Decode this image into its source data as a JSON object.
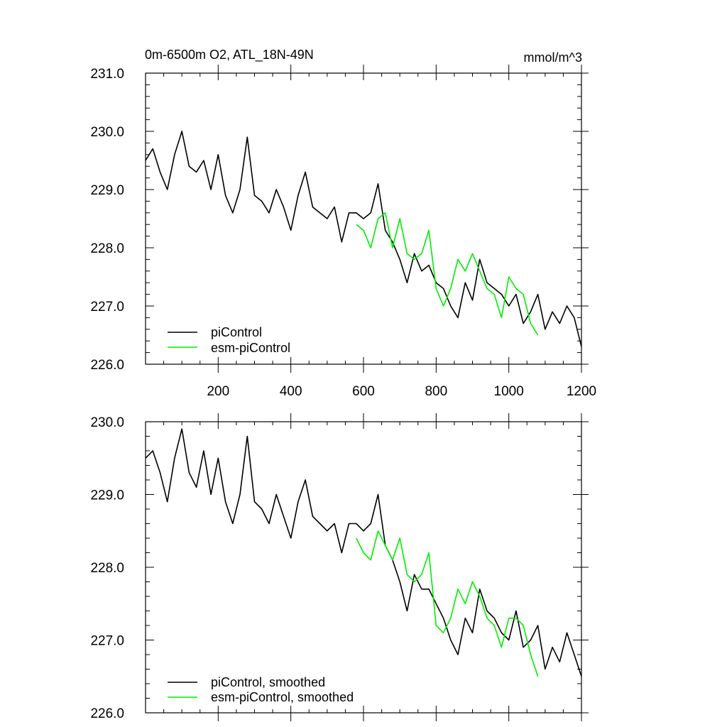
{
  "colors": {
    "piControl": "#000000",
    "esm_piControl": "#00ee00"
  },
  "chart_data": [
    {
      "type": "line",
      "title_left": "0m-6500m O2, ATL_18N-49N",
      "title_right": "mmol/m^3",
      "xlabel": "",
      "ylabel": "",
      "xlim": [
        0,
        1200
      ],
      "ylim": [
        226.0,
        231.0
      ],
      "x_ticks": [
        200,
        400,
        600,
        800,
        1000,
        1200
      ],
      "x_tick_labels": [
        "200",
        "400",
        "600",
        "800",
        "1000",
        "1200"
      ],
      "y_ticks": [
        226,
        227,
        228,
        229,
        230,
        231
      ],
      "y_tick_labels": [
        "226.0",
        "227.0",
        "228.0",
        "229.0",
        "230.0",
        "231.0"
      ],
      "legend_position": "bottom-left",
      "series": [
        {
          "name": "piControl",
          "color": "#000000",
          "x": [
            0,
            20,
            40,
            60,
            80,
            100,
            120,
            140,
            160,
            180,
            200,
            220,
            240,
            260,
            280,
            300,
            320,
            340,
            360,
            380,
            400,
            420,
            440,
            460,
            480,
            500,
            520,
            540,
            560,
            580,
            600,
            620,
            640,
            660,
            680,
            700,
            720,
            740,
            760,
            780,
            800,
            820,
            840,
            860,
            880,
            900,
            920,
            940,
            960,
            980,
            1000,
            1020,
            1040,
            1060,
            1080,
            1100,
            1120,
            1140,
            1160,
            1180,
            1200
          ],
          "y": [
            229.5,
            229.7,
            229.3,
            229.0,
            229.6,
            230.0,
            229.4,
            229.3,
            229.5,
            229.0,
            229.6,
            228.9,
            228.6,
            229.0,
            229.9,
            228.9,
            228.8,
            228.6,
            229.0,
            228.7,
            228.3,
            228.9,
            229.3,
            228.7,
            228.6,
            228.5,
            228.7,
            228.1,
            228.6,
            228.6,
            228.5,
            228.6,
            229.1,
            228.3,
            228.1,
            227.8,
            227.4,
            227.9,
            227.6,
            227.7,
            227.4,
            227.3,
            227.0,
            226.8,
            227.4,
            227.1,
            227.8,
            227.4,
            227.3,
            227.2,
            227.0,
            227.2,
            226.7,
            226.9,
            227.2,
            226.6,
            226.9,
            226.7,
            227.0,
            226.8,
            226.3
          ]
        },
        {
          "name": "esm-piControl",
          "color": "#00ee00",
          "x": [
            580,
            600,
            620,
            640,
            660,
            680,
            700,
            720,
            740,
            760,
            780,
            800,
            820,
            840,
            860,
            880,
            900,
            920,
            940,
            960,
            980,
            1000,
            1020,
            1040,
            1060,
            1080
          ],
          "y": [
            228.4,
            228.3,
            228.0,
            228.5,
            228.6,
            228.0,
            228.5,
            227.9,
            227.8,
            227.9,
            228.3,
            227.3,
            227.0,
            227.3,
            227.8,
            227.6,
            227.9,
            227.6,
            227.3,
            227.2,
            226.8,
            227.5,
            227.3,
            227.2,
            226.7,
            226.5
          ]
        }
      ]
    },
    {
      "type": "line",
      "xlabel": "",
      "ylabel": "",
      "xlim": [
        0,
        1200
      ],
      "ylim": [
        226.0,
        230.0
      ],
      "y_ticks": [
        226,
        227,
        228,
        229,
        230
      ],
      "y_tick_labels": [
        "226.0",
        "227.0",
        "228.0",
        "229.0",
        "230.0"
      ],
      "legend_position": "bottom-left",
      "series": [
        {
          "name": "piControl, smoothed",
          "color": "#000000",
          "x": [
            0,
            20,
            40,
            60,
            80,
            100,
            120,
            140,
            160,
            180,
            200,
            220,
            240,
            260,
            280,
            300,
            320,
            340,
            360,
            380,
            400,
            420,
            440,
            460,
            480,
            500,
            520,
            540,
            560,
            580,
            600,
            620,
            640,
            660,
            680,
            700,
            720,
            740,
            760,
            780,
            800,
            820,
            840,
            860,
            880,
            900,
            920,
            940,
            960,
            980,
            1000,
            1020,
            1040,
            1060,
            1080,
            1100,
            1120,
            1140,
            1160,
            1180,
            1200
          ],
          "y": [
            229.5,
            229.6,
            229.3,
            228.9,
            229.5,
            229.9,
            229.3,
            229.1,
            229.6,
            229.0,
            229.5,
            228.9,
            228.6,
            229.0,
            229.8,
            228.9,
            228.8,
            228.6,
            229.0,
            228.7,
            228.4,
            228.9,
            229.2,
            228.7,
            228.6,
            228.5,
            228.6,
            228.2,
            228.6,
            228.6,
            228.5,
            228.6,
            229.0,
            228.3,
            228.1,
            227.8,
            227.4,
            227.9,
            227.7,
            227.7,
            227.5,
            227.3,
            227.0,
            226.8,
            227.3,
            227.1,
            227.7,
            227.4,
            227.3,
            227.1,
            227.0,
            227.4,
            226.9,
            227.0,
            227.2,
            226.6,
            226.9,
            226.7,
            227.1,
            226.8,
            226.5
          ]
        },
        {
          "name": "esm-piControl, smoothed",
          "color": "#00ee00",
          "x": [
            580,
            600,
            620,
            640,
            660,
            680,
            700,
            720,
            740,
            760,
            780,
            800,
            820,
            840,
            860,
            880,
            900,
            920,
            940,
            960,
            980,
            1000,
            1020,
            1040,
            1060,
            1080
          ],
          "y": [
            228.4,
            228.2,
            228.1,
            228.5,
            228.3,
            228.1,
            228.4,
            227.9,
            227.8,
            227.9,
            228.2,
            227.2,
            227.1,
            227.3,
            227.7,
            227.5,
            227.8,
            227.6,
            227.3,
            227.2,
            226.9,
            227.3,
            227.3,
            227.2,
            226.8,
            226.5
          ]
        }
      ]
    }
  ]
}
